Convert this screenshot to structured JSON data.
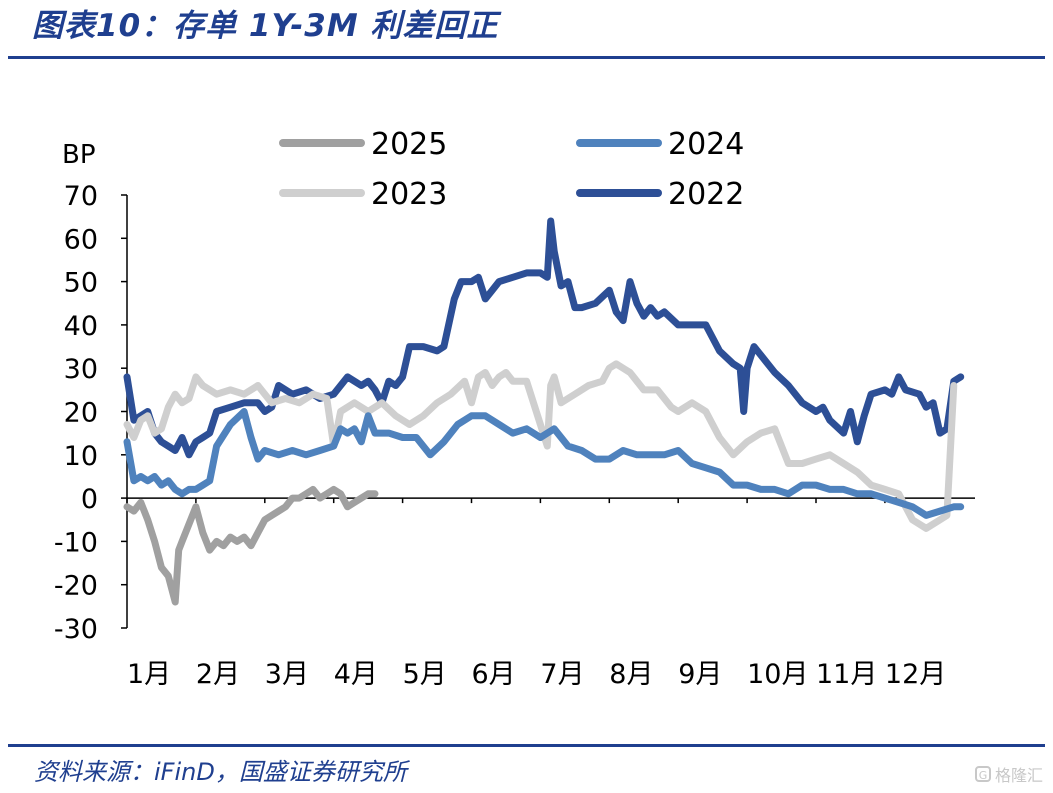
{
  "header": {
    "title": "图表10：存单 1Y-3M 利差回正"
  },
  "footer": {
    "source": "资料来源：iFinD，国盛证券研究所",
    "watermark": "格隆汇"
  },
  "colors": {
    "rule": "#1f3f8f"
  },
  "chart_data": {
    "type": "line",
    "ylabel": "BP",
    "ylim": [
      -30,
      70
    ],
    "yticks": [
      70,
      60,
      50,
      40,
      30,
      20,
      10,
      0,
      -10,
      -20,
      -30
    ],
    "month_ticks": [
      "1月",
      "2月",
      "3月",
      "4月",
      "5月",
      "6月",
      "7月",
      "8月",
      "9月",
      "10月",
      "11月",
      "12月"
    ],
    "xrange_months": [
      1,
      12.8
    ],
    "legend": "top, 2x2 grid",
    "series": [
      {
        "name": "2022",
        "color": "#2d4f96",
        "points": [
          [
            1.0,
            28
          ],
          [
            1.1,
            18
          ],
          [
            1.2,
            19
          ],
          [
            1.3,
            20
          ],
          [
            1.4,
            15
          ],
          [
            1.5,
            13
          ],
          [
            1.6,
            12
          ],
          [
            1.7,
            11
          ],
          [
            1.8,
            14
          ],
          [
            1.9,
            10
          ],
          [
            2.0,
            13
          ],
          [
            2.1,
            14
          ],
          [
            2.2,
            15
          ],
          [
            2.3,
            20
          ],
          [
            2.5,
            21
          ],
          [
            2.7,
            22
          ],
          [
            2.9,
            22
          ],
          [
            3.0,
            20
          ],
          [
            3.1,
            21
          ],
          [
            3.2,
            26
          ],
          [
            3.4,
            24
          ],
          [
            3.6,
            25
          ],
          [
            3.8,
            23
          ],
          [
            4.0,
            24
          ],
          [
            4.2,
            28
          ],
          [
            4.4,
            26
          ],
          [
            4.5,
            27
          ],
          [
            4.6,
            25
          ],
          [
            4.7,
            22
          ],
          [
            4.8,
            27
          ],
          [
            4.9,
            26
          ],
          [
            5.0,
            28
          ],
          [
            5.1,
            35
          ],
          [
            5.3,
            35
          ],
          [
            5.5,
            34
          ],
          [
            5.6,
            35
          ],
          [
            5.75,
            46
          ],
          [
            5.85,
            50
          ],
          [
            6.0,
            50
          ],
          [
            6.1,
            51
          ],
          [
            6.2,
            46
          ],
          [
            6.3,
            48
          ],
          [
            6.4,
            50
          ],
          [
            6.6,
            51
          ],
          [
            6.8,
            52
          ],
          [
            7.0,
            52
          ],
          [
            7.1,
            51
          ],
          [
            7.15,
            64
          ],
          [
            7.2,
            57
          ],
          [
            7.3,
            49
          ],
          [
            7.4,
            50
          ],
          [
            7.5,
            44
          ],
          [
            7.6,
            44
          ],
          [
            7.8,
            45
          ],
          [
            8.0,
            48
          ],
          [
            8.1,
            43
          ],
          [
            8.2,
            41
          ],
          [
            8.3,
            50
          ],
          [
            8.4,
            45
          ],
          [
            8.5,
            42
          ],
          [
            8.6,
            44
          ],
          [
            8.7,
            42
          ],
          [
            8.8,
            43
          ],
          [
            9.0,
            40
          ],
          [
            9.2,
            40
          ],
          [
            9.4,
            40
          ],
          [
            9.6,
            34
          ],
          [
            9.8,
            31
          ],
          [
            9.9,
            30
          ],
          [
            9.95,
            20
          ],
          [
            10.0,
            30
          ],
          [
            10.1,
            35
          ],
          [
            10.2,
            33
          ],
          [
            10.4,
            29
          ],
          [
            10.6,
            26
          ],
          [
            10.8,
            22
          ],
          [
            11.0,
            20
          ],
          [
            11.1,
            21
          ],
          [
            11.2,
            18
          ],
          [
            11.4,
            15
          ],
          [
            11.5,
            20
          ],
          [
            11.6,
            13
          ],
          [
            11.7,
            19
          ],
          [
            11.8,
            24
          ],
          [
            12.0,
            25
          ],
          [
            12.1,
            24
          ],
          [
            12.2,
            28
          ],
          [
            12.3,
            25
          ],
          [
            12.5,
            24
          ],
          [
            12.6,
            21
          ],
          [
            12.7,
            22
          ],
          [
            12.8,
            15
          ],
          [
            12.9,
            16
          ],
          [
            13.0,
            27
          ],
          [
            13.1,
            28
          ]
        ]
      },
      {
        "name": "2023",
        "color": "#cfcfcf",
        "points": [
          [
            1.0,
            17
          ],
          [
            1.1,
            14
          ],
          [
            1.2,
            18
          ],
          [
            1.3,
            19
          ],
          [
            1.4,
            15
          ],
          [
            1.5,
            16
          ],
          [
            1.6,
            21
          ],
          [
            1.7,
            24
          ],
          [
            1.8,
            22
          ],
          [
            1.9,
            23
          ],
          [
            2.0,
            28
          ],
          [
            2.1,
            26
          ],
          [
            2.3,
            24
          ],
          [
            2.5,
            25
          ],
          [
            2.7,
            24
          ],
          [
            2.9,
            26
          ],
          [
            3.0,
            24
          ],
          [
            3.1,
            22
          ],
          [
            3.3,
            23
          ],
          [
            3.5,
            22
          ],
          [
            3.7,
            24
          ],
          [
            3.9,
            23
          ],
          [
            4.0,
            12
          ],
          [
            4.1,
            20
          ],
          [
            4.3,
            22
          ],
          [
            4.5,
            20
          ],
          [
            4.7,
            22
          ],
          [
            4.9,
            19
          ],
          [
            5.0,
            18
          ],
          [
            5.1,
            17
          ],
          [
            5.3,
            19
          ],
          [
            5.5,
            22
          ],
          [
            5.7,
            24
          ],
          [
            5.9,
            27
          ],
          [
            6.0,
            22
          ],
          [
            6.1,
            28
          ],
          [
            6.2,
            29
          ],
          [
            6.3,
            26
          ],
          [
            6.4,
            28
          ],
          [
            6.5,
            29
          ],
          [
            6.6,
            27
          ],
          [
            6.8,
            27
          ],
          [
            7.0,
            17
          ],
          [
            7.1,
            12
          ],
          [
            7.15,
            26
          ],
          [
            7.2,
            28
          ],
          [
            7.3,
            22
          ],
          [
            7.5,
            24
          ],
          [
            7.7,
            26
          ],
          [
            7.9,
            27
          ],
          [
            8.0,
            30
          ],
          [
            8.1,
            31
          ],
          [
            8.2,
            30
          ],
          [
            8.3,
            29
          ],
          [
            8.5,
            25
          ],
          [
            8.7,
            25
          ],
          [
            8.9,
            21
          ],
          [
            9.0,
            20
          ],
          [
            9.2,
            22
          ],
          [
            9.4,
            20
          ],
          [
            9.6,
            14
          ],
          [
            9.8,
            10
          ],
          [
            10.0,
            13
          ],
          [
            10.2,
            15
          ],
          [
            10.4,
            16
          ],
          [
            10.6,
            8
          ],
          [
            10.8,
            8
          ],
          [
            11.0,
            9
          ],
          [
            11.2,
            10
          ],
          [
            11.4,
            8
          ],
          [
            11.6,
            6
          ],
          [
            11.8,
            3
          ],
          [
            12.0,
            2
          ],
          [
            12.2,
            1
          ],
          [
            12.4,
            -5
          ],
          [
            12.6,
            -7
          ],
          [
            12.8,
            -5
          ],
          [
            12.9,
            -4
          ],
          [
            13.0,
            26
          ]
        ]
      },
      {
        "name": "2024",
        "color": "#4f82bd",
        "points": [
          [
            1.0,
            13
          ],
          [
            1.1,
            4
          ],
          [
            1.2,
            5
          ],
          [
            1.3,
            4
          ],
          [
            1.4,
            5
          ],
          [
            1.5,
            3
          ],
          [
            1.6,
            4
          ],
          [
            1.7,
            2
          ],
          [
            1.8,
            1
          ],
          [
            1.9,
            2
          ],
          [
            2.0,
            2
          ],
          [
            2.1,
            3
          ],
          [
            2.2,
            4
          ],
          [
            2.3,
            12
          ],
          [
            2.5,
            17
          ],
          [
            2.7,
            20
          ],
          [
            2.8,
            14
          ],
          [
            2.9,
            9
          ],
          [
            3.0,
            11
          ],
          [
            3.2,
            10
          ],
          [
            3.4,
            11
          ],
          [
            3.6,
            10
          ],
          [
            3.8,
            11
          ],
          [
            4.0,
            12
          ],
          [
            4.1,
            16
          ],
          [
            4.2,
            15
          ],
          [
            4.3,
            16
          ],
          [
            4.4,
            13
          ],
          [
            4.5,
            19
          ],
          [
            4.6,
            15
          ],
          [
            4.8,
            15
          ],
          [
            5.0,
            14
          ],
          [
            5.2,
            14
          ],
          [
            5.4,
            10
          ],
          [
            5.6,
            13
          ],
          [
            5.8,
            17
          ],
          [
            6.0,
            19
          ],
          [
            6.2,
            19
          ],
          [
            6.4,
            17
          ],
          [
            6.6,
            15
          ],
          [
            6.8,
            16
          ],
          [
            7.0,
            14
          ],
          [
            7.2,
            16
          ],
          [
            7.4,
            12
          ],
          [
            7.6,
            11
          ],
          [
            7.8,
            9
          ],
          [
            8.0,
            9
          ],
          [
            8.2,
            11
          ],
          [
            8.4,
            10
          ],
          [
            8.6,
            10
          ],
          [
            8.8,
            10
          ],
          [
            9.0,
            11
          ],
          [
            9.2,
            8
          ],
          [
            9.4,
            7
          ],
          [
            9.6,
            6
          ],
          [
            9.8,
            3
          ],
          [
            10.0,
            3
          ],
          [
            10.2,
            2
          ],
          [
            10.4,
            2
          ],
          [
            10.6,
            1
          ],
          [
            10.8,
            3
          ],
          [
            11.0,
            3
          ],
          [
            11.2,
            2
          ],
          [
            11.4,
            2
          ],
          [
            11.6,
            1
          ],
          [
            11.8,
            1
          ],
          [
            12.0,
            0
          ],
          [
            12.2,
            -1
          ],
          [
            12.4,
            -2
          ],
          [
            12.6,
            -4
          ],
          [
            12.8,
            -3
          ],
          [
            13.0,
            -2
          ],
          [
            13.1,
            -2
          ]
        ]
      },
      {
        "name": "2025",
        "color": "#a0a0a0",
        "points": [
          [
            1.0,
            -2
          ],
          [
            1.1,
            -3
          ],
          [
            1.2,
            -1
          ],
          [
            1.3,
            -5
          ],
          [
            1.4,
            -10
          ],
          [
            1.5,
            -16
          ],
          [
            1.6,
            -18
          ],
          [
            1.7,
            -24
          ],
          [
            1.75,
            -12
          ],
          [
            1.8,
            -10
          ],
          [
            1.9,
            -6
          ],
          [
            2.0,
            -2
          ],
          [
            2.1,
            -8
          ],
          [
            2.2,
            -12
          ],
          [
            2.3,
            -10
          ],
          [
            2.4,
            -11
          ],
          [
            2.5,
            -9
          ],
          [
            2.6,
            -10
          ],
          [
            2.7,
            -9
          ],
          [
            2.8,
            -11
          ],
          [
            2.9,
            -8
          ],
          [
            3.0,
            -5
          ],
          [
            3.1,
            -4
          ],
          [
            3.2,
            -3
          ],
          [
            3.3,
            -2
          ],
          [
            3.4,
            0
          ],
          [
            3.5,
            0
          ],
          [
            3.6,
            1
          ],
          [
            3.7,
            2
          ],
          [
            3.8,
            0
          ],
          [
            3.9,
            1
          ],
          [
            4.0,
            2
          ],
          [
            4.1,
            1
          ],
          [
            4.2,
            -2
          ],
          [
            4.3,
            -1
          ],
          [
            4.4,
            0
          ],
          [
            4.5,
            1
          ],
          [
            4.6,
            1
          ]
        ]
      }
    ]
  }
}
